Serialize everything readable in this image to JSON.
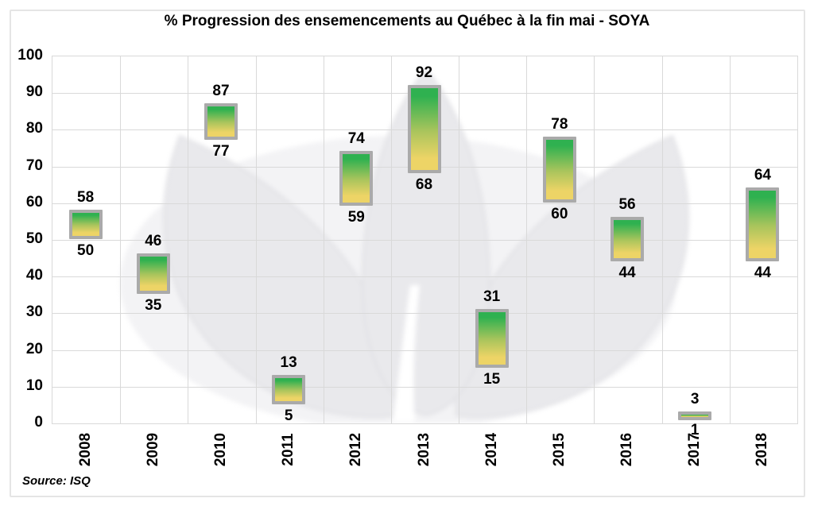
{
  "source_note": "Source: ISQ",
  "colors": {
    "bar_gradient_top": "#2fb150",
    "bar_gradient_mid": "#a8c45c",
    "bar_gradient_bottom": "#edd466",
    "bar_border": "#aaaaaa",
    "gridline": "#d9d9d9",
    "text": "#000000",
    "watermark_halo": "#f3f3f5",
    "watermark_leaf": "#e9e9ec",
    "watermark_edge": "#dfdfe3",
    "frame_border": "#e5e5e5"
  },
  "chart_data": {
    "type": "bar",
    "subtype": "floating-range-column",
    "title": "% Progression des ensemencements au Québec à la fin mai - SOYA",
    "categories": [
      "2008",
      "2009",
      "2010",
      "2011",
      "2012",
      "2013",
      "2014",
      "2015",
      "2016",
      "2017",
      "2018"
    ],
    "low": [
      50,
      35,
      77,
      5,
      59,
      68,
      15,
      60,
      44,
      1,
      44
    ],
    "high": [
      58,
      46,
      87,
      13,
      74,
      92,
      31,
      78,
      56,
      3,
      64
    ],
    "data_labels": "high value above bar, low value below bar",
    "xlabel": "",
    "ylabel": "",
    "ylim": [
      0,
      100
    ],
    "yticks": [
      0,
      10,
      20,
      30,
      40,
      50,
      60,
      70,
      80,
      90,
      100
    ],
    "grid": true,
    "legend": "none"
  }
}
